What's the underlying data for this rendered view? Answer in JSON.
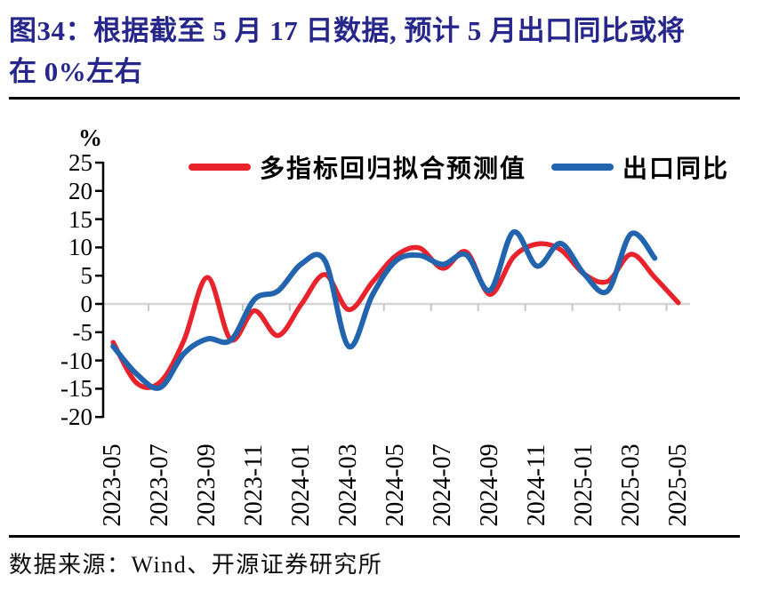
{
  "title": {
    "line1": "图34：根据截至 5 月 17 日数据, 预计 5 月出口同比或将",
    "line2": "在 0%左右"
  },
  "source": "数据来源：Wind、开源证券研究所",
  "chart_data": {
    "type": "line",
    "unit_label": "%",
    "x": [
      "2023-05",
      "2023-06",
      "2023-07",
      "2023-08",
      "2023-09",
      "2023-10",
      "2023-11",
      "2023-12",
      "2024-01",
      "2024-02",
      "2024-03",
      "2024-04",
      "2024-05",
      "2024-06",
      "2024-07",
      "2024-08",
      "2024-09",
      "2024-10",
      "2024-11",
      "2024-12",
      "2025-01",
      "2025-02",
      "2025-03",
      "2025-04",
      "2025-05"
    ],
    "xtick_labels_shown": [
      "2023-05",
      "2023-07",
      "2023-09",
      "2023-11",
      "2024-01",
      "2024-03",
      "2024-05",
      "2024-07",
      "2024-09",
      "2024-11",
      "2025-01",
      "2025-03",
      "2025-05"
    ],
    "series": [
      {
        "name": "多指标回归拟合预测值",
        "color": "#E8232B",
        "values": [
          -6.8,
          -14.0,
          -13.8,
          -6.5,
          4.7,
          -6.3,
          -1.2,
          -5.6,
          0.0,
          5.2,
          -1.0,
          3.8,
          8.5,
          9.9,
          6.3,
          9.2,
          1.7,
          8.3,
          10.6,
          9.6,
          5.3,
          4.0,
          8.8,
          4.7,
          0.2
        ]
      },
      {
        "name": "出口同比",
        "color": "#2264AE",
        "values": [
          -7.5,
          -12.4,
          -14.8,
          -8.8,
          -6.2,
          -6.4,
          0.8,
          2.3,
          7.1,
          7.6,
          -7.5,
          1.5,
          7.6,
          8.6,
          7.0,
          8.7,
          2.4,
          12.7,
          6.7,
          10.7,
          5.3,
          2.3,
          12.4,
          8.1,
          null
        ]
      }
    ],
    "ylim": [
      -20,
      25
    ],
    "ytick_step": 5,
    "yticks": [
      25,
      20,
      15,
      10,
      5,
      0,
      -5,
      -10,
      -15,
      -20
    ],
    "grid": "zero-line-only",
    "legend_position": "top-center",
    "axis_color": "#000000",
    "zero_line_color": "#D4D4D4"
  }
}
